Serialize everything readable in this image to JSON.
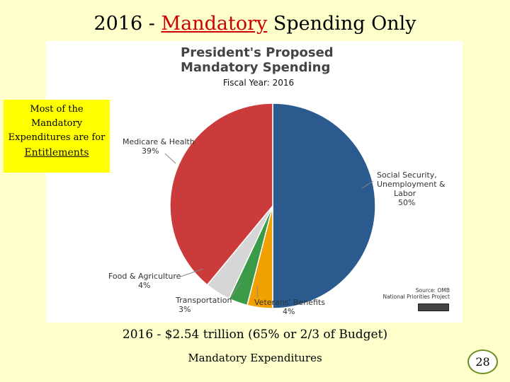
{
  "slide": {
    "title_pre": "2016 - ",
    "title_highlight": "Mandatory",
    "title_post": " Spending Only",
    "callout_lines": [
      "Most of the",
      "Mandatory",
      "Expenditures are for"
    ],
    "callout_emphasis": "Entitlements",
    "summary": "2016 - $2.54 trillion  (65% or 2/3 of Budget)",
    "footer": "Mandatory Expenditures",
    "page_number": "28"
  },
  "chart_data": {
    "type": "pie",
    "title": "President's Proposed Mandatory Spending",
    "title_lines": [
      "President's Proposed",
      "Mandatory Spending"
    ],
    "subtitle": "Fiscal Year: 2016",
    "source_lines": [
      "Source: OMB",
      "National Priorities Project"
    ],
    "slices": [
      {
        "label_lines": [
          "Social Security,",
          "Unemployment &",
          "Labor"
        ],
        "pct_text": "50%",
        "value": 50,
        "color": "#2a5a8e"
      },
      {
        "label_lines": [
          "Veterans' Benefits"
        ],
        "pct_text": "4%",
        "value": 4,
        "color": "#f0a000"
      },
      {
        "label_lines": [
          "Transportation"
        ],
        "pct_text": "3%",
        "value": 3,
        "color": "#3a9a48"
      },
      {
        "label_lines": [
          "Food & Agriculture"
        ],
        "pct_text": "4%",
        "value": 4,
        "color": "#d6d6d6"
      },
      {
        "label_lines": [
          "Medicare & Health"
        ],
        "pct_text": "39%",
        "value": 39,
        "color": "#cc3b3b"
      }
    ]
  }
}
